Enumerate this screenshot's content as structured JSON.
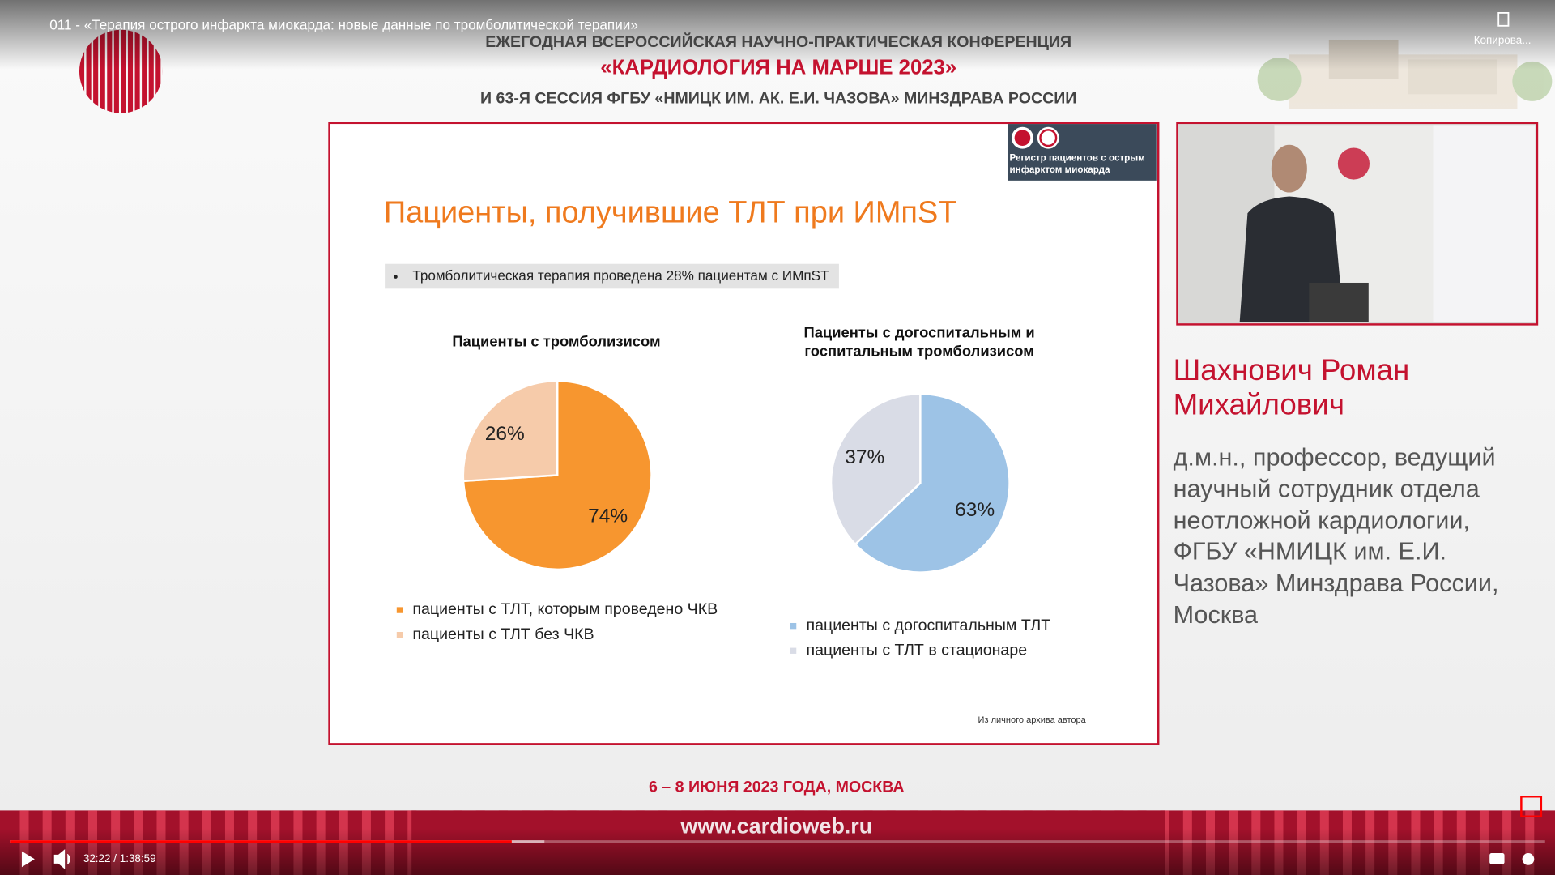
{
  "video": {
    "title": "011 - «Терапия острого инфаркта миокарда: новые данные по тромболитической терапии»",
    "copy_label": "Копирова...",
    "time": "32:22 / 1:38:59"
  },
  "header": {
    "line1": "ЕЖЕГОДНАЯ ВСЕРОССИЙСКАЯ НАУЧНО-ПРАКТИЧЕСКАЯ КОНФЕРЕНЦИЯ",
    "line2": "«КАРДИОЛОГИЯ НА МАРШЕ 2023»",
    "line3": "И 63-Я СЕССИЯ ФГБУ «НМИЦК ИМ. АК. Е.И. ЧАЗОВА» МИНЗДРАВА РОССИИ"
  },
  "slide": {
    "badge": "Регистр пациентов с острым инфарктом миокарда",
    "title": "Пациенты, получившие  ТЛТ при ИМпST",
    "bullet": "Тромболитическая терапия проведена 28% пациентам с ИМпST",
    "footer": "Из личного архива автора"
  },
  "chart_data": [
    {
      "type": "pie",
      "title": "Пациенты с тромболизисом",
      "categories": [
        "пациенты с ТЛТ, которым проведено ЧКВ",
        "пациенты с ТЛТ без ЧКВ"
      ],
      "values": [
        74,
        26
      ],
      "value_labels": [
        "74%",
        "26%"
      ],
      "colors": [
        "#f7962f",
        "#f6cbaa"
      ]
    },
    {
      "type": "pie",
      "title": "Пациенты с догоспитальным и госпитальным тромболизисом",
      "categories": [
        "пациенты с догоспитальным ТЛТ",
        "пациенты с ТЛТ в стационаре"
      ],
      "values": [
        63,
        37
      ],
      "value_labels": [
        "63%",
        "37%"
      ],
      "colors": [
        "#9dc3e6",
        "#d9dce6"
      ]
    }
  ],
  "speaker": {
    "name": [
      "Шахнович  Роман",
      "Михайлович"
    ],
    "description": [
      "д.м.н., профессор, ведущий",
      "научный сотрудник отдела",
      "неотложной кардиологии,",
      "ФГБУ «НМИЦК им. Е.И.",
      "Чазова» Минздрава России,",
      "Москва"
    ]
  },
  "footer": {
    "date": "6 – 8 ИЮНЯ 2023 ГОДА, МОСКВА",
    "url": "www.cardioweb.ru"
  }
}
